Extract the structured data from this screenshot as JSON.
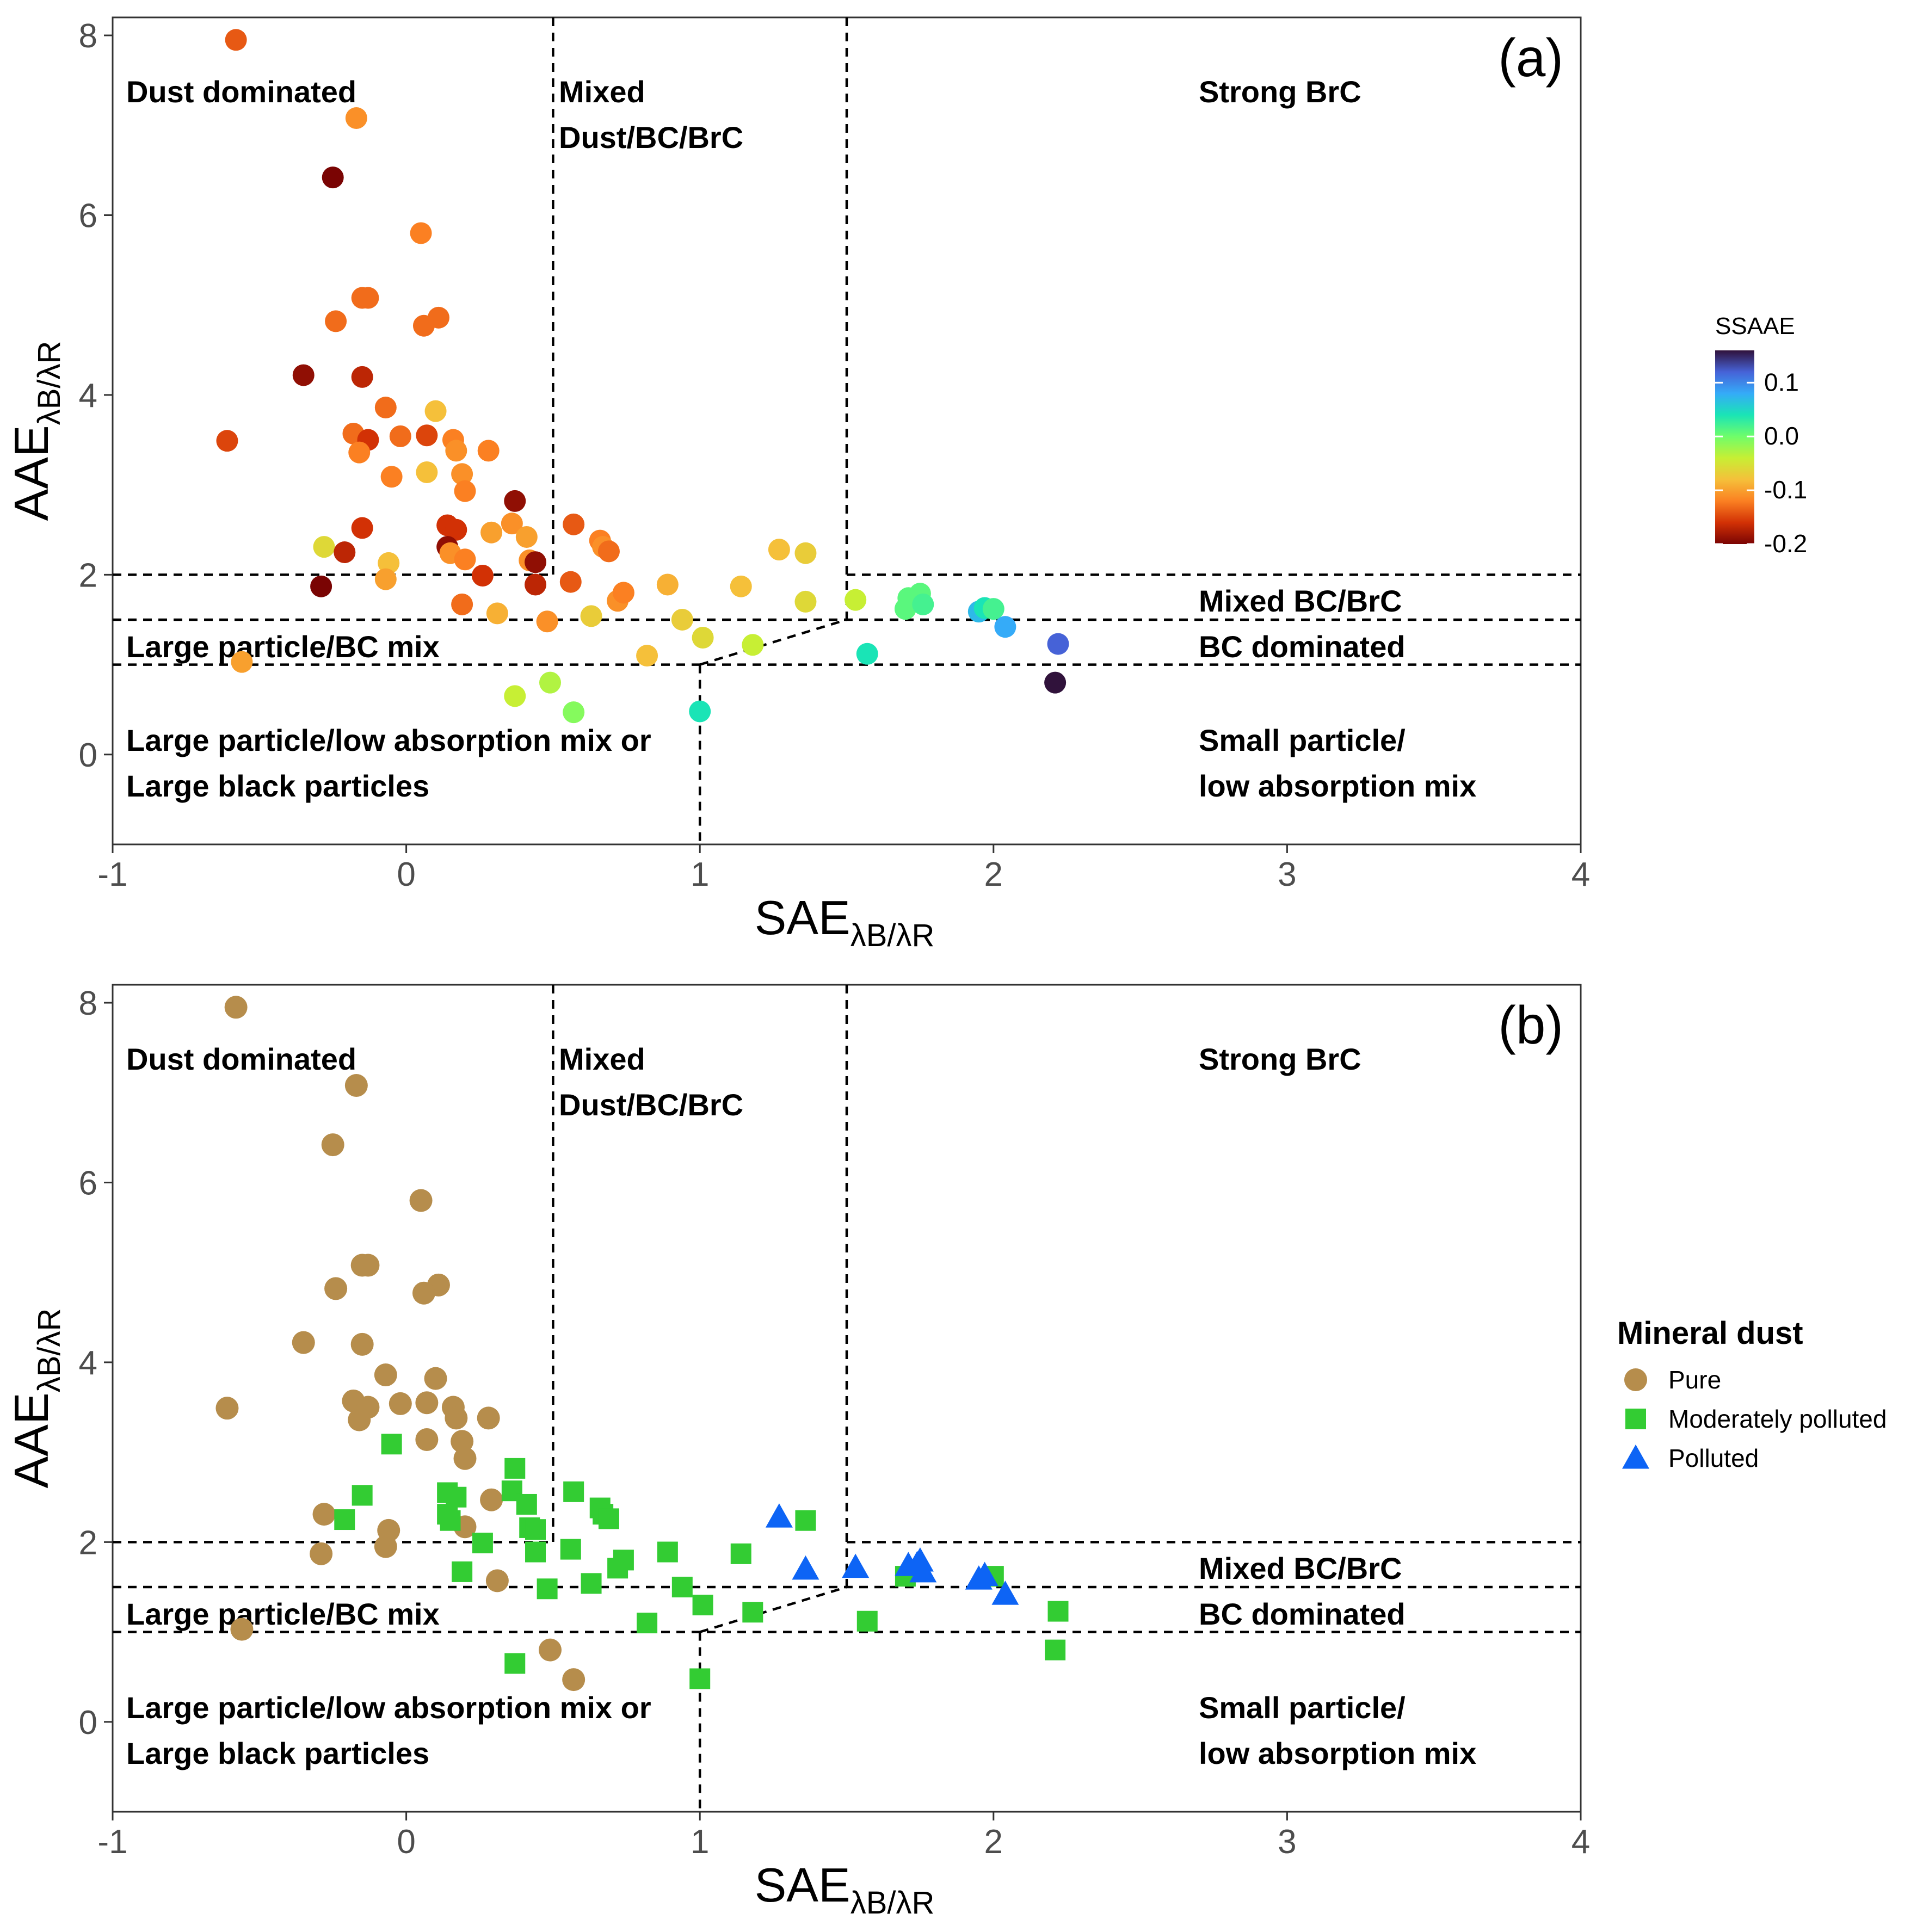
{
  "chart_data": [
    {
      "type": "scatter",
      "panel_label": "(a)",
      "xlabel": "SAE",
      "xlabel_subscript": "λB/λR",
      "ylabel": "AAE",
      "ylabel_subscript": "λB/λR",
      "xlim": [
        -1,
        4
      ],
      "ylim": [
        -1,
        8.2
      ],
      "xticks": [
        "-1",
        "0",
        "1",
        "2",
        "3",
        "4"
      ],
      "yticks": [
        "0",
        "2",
        "4",
        "6",
        "8"
      ],
      "grid": false,
      "color_scale": {
        "title": "SSAAE",
        "ticks": [
          "0.1",
          "0.0",
          "-0.1",
          "-0.2"
        ],
        "min": -0.2,
        "max": 0.16,
        "palette": [
          "#7a0403",
          "#d23105",
          "#fb8022",
          "#f5c03a",
          "#c7ef34",
          "#6ffd6a",
          "#1ae4b6",
          "#35abf8",
          "#4662d7",
          "#30123b"
        ]
      },
      "points": [
        {
          "x": -0.58,
          "y": 7.95,
          "c": -0.14
        },
        {
          "x": -0.17,
          "y": 7.08,
          "c": -0.11
        },
        {
          "x": -0.25,
          "y": 6.42,
          "c": -0.2
        },
        {
          "x": 0.05,
          "y": 5.8,
          "c": -0.12
        },
        {
          "x": -0.15,
          "y": 5.08,
          "c": -0.13
        },
        {
          "x": -0.13,
          "y": 5.08,
          "c": -0.13
        },
        {
          "x": -0.24,
          "y": 4.82,
          "c": -0.13
        },
        {
          "x": 0.11,
          "y": 4.86,
          "c": -0.13
        },
        {
          "x": 0.06,
          "y": 4.77,
          "c": -0.13
        },
        {
          "x": -0.35,
          "y": 4.22,
          "c": -0.19
        },
        {
          "x": -0.15,
          "y": 4.2,
          "c": -0.17
        },
        {
          "x": -0.07,
          "y": 3.86,
          "c": -0.13
        },
        {
          "x": 0.1,
          "y": 3.82,
          "c": -0.08
        },
        {
          "x": -0.61,
          "y": 3.49,
          "c": -0.15
        },
        {
          "x": -0.18,
          "y": 3.57,
          "c": -0.13
        },
        {
          "x": -0.13,
          "y": 3.5,
          "c": -0.16
        },
        {
          "x": -0.02,
          "y": 3.54,
          "c": -0.13
        },
        {
          "x": 0.07,
          "y": 3.55,
          "c": -0.15
        },
        {
          "x": 0.16,
          "y": 3.5,
          "c": -0.12
        },
        {
          "x": 0.17,
          "y": 3.38,
          "c": -0.11
        },
        {
          "x": 0.28,
          "y": 3.38,
          "c": -0.12
        },
        {
          "x": -0.16,
          "y": 3.36,
          "c": -0.12
        },
        {
          "x": -0.05,
          "y": 3.09,
          "c": -0.12
        },
        {
          "x": 0.07,
          "y": 3.14,
          "c": -0.08
        },
        {
          "x": 0.19,
          "y": 3.12,
          "c": -0.11
        },
        {
          "x": 0.2,
          "y": 2.93,
          "c": -0.12
        },
        {
          "x": 0.37,
          "y": 2.82,
          "c": -0.19
        },
        {
          "x": -0.15,
          "y": 2.52,
          "c": -0.16
        },
        {
          "x": 0.14,
          "y": 2.55,
          "c": -0.16
        },
        {
          "x": 0.17,
          "y": 2.5,
          "c": -0.16
        },
        {
          "x": 0.29,
          "y": 2.47,
          "c": -0.1
        },
        {
          "x": 0.36,
          "y": 2.57,
          "c": -0.11
        },
        {
          "x": 0.41,
          "y": 2.42,
          "c": -0.1
        },
        {
          "x": 0.57,
          "y": 2.56,
          "c": -0.14
        },
        {
          "x": 0.66,
          "y": 2.38,
          "c": -0.12
        },
        {
          "x": 0.67,
          "y": 2.31,
          "c": -0.11
        },
        {
          "x": 0.69,
          "y": 2.26,
          "c": -0.13
        },
        {
          "x": -0.28,
          "y": 2.31,
          "c": -0.06
        },
        {
          "x": -0.21,
          "y": 2.25,
          "c": -0.17
        },
        {
          "x": 0.14,
          "y": 2.31,
          "c": -0.19
        },
        {
          "x": 0.15,
          "y": 2.24,
          "c": -0.11
        },
        {
          "x": 0.2,
          "y": 2.17,
          "c": -0.12
        },
        {
          "x": 0.42,
          "y": 2.16,
          "c": -0.11
        },
        {
          "x": 0.44,
          "y": 2.14,
          "c": -0.19
        },
        {
          "x": 1.27,
          "y": 2.28,
          "c": -0.08
        },
        {
          "x": 1.36,
          "y": 2.24,
          "c": -0.07
        },
        {
          "x": -0.06,
          "y": 2.13,
          "c": -0.08
        },
        {
          "x": -0.07,
          "y": 1.95,
          "c": -0.1
        },
        {
          "x": 0.26,
          "y": 1.99,
          "c": -0.16
        },
        {
          "x": 0.44,
          "y": 1.89,
          "c": -0.17
        },
        {
          "x": 0.56,
          "y": 1.92,
          "c": -0.14
        },
        {
          "x": -0.29,
          "y": 1.87,
          "c": -0.21
        },
        {
          "x": 0.72,
          "y": 1.71,
          "c": -0.11
        },
        {
          "x": 0.74,
          "y": 1.8,
          "c": -0.12
        },
        {
          "x": 0.89,
          "y": 1.89,
          "c": -0.09
        },
        {
          "x": 1.14,
          "y": 1.87,
          "c": -0.08
        },
        {
          "x": 0.19,
          "y": 1.67,
          "c": -0.13
        },
        {
          "x": 0.31,
          "y": 1.57,
          "c": -0.09
        },
        {
          "x": 0.48,
          "y": 1.48,
          "c": -0.11
        },
        {
          "x": 0.63,
          "y": 1.54,
          "c": -0.07
        },
        {
          "x": 0.94,
          "y": 1.5,
          "c": -0.07
        },
        {
          "x": 1.01,
          "y": 1.3,
          "c": -0.06
        },
        {
          "x": 1.36,
          "y": 1.7,
          "c": -0.06
        },
        {
          "x": 1.53,
          "y": 1.72,
          "c": -0.04
        },
        {
          "x": 1.7,
          "y": 1.62,
          "c": 0.01
        },
        {
          "x": 1.71,
          "y": 1.74,
          "c": 0.01
        },
        {
          "x": 1.74,
          "y": 1.75,
          "c": 0.01
        },
        {
          "x": 1.75,
          "y": 1.79,
          "c": 0.01
        },
        {
          "x": 1.76,
          "y": 1.67,
          "c": 0.02
        },
        {
          "x": 1.95,
          "y": 1.59,
          "c": 0.07
        },
        {
          "x": 1.97,
          "y": 1.63,
          "c": 0.04
        },
        {
          "x": 2.0,
          "y": 1.62,
          "c": 0.02
        },
        {
          "x": 2.04,
          "y": 1.42,
          "c": 0.08
        },
        {
          "x": -0.56,
          "y": 1.03,
          "c": -0.1
        },
        {
          "x": 1.18,
          "y": 1.22,
          "c": -0.04
        },
        {
          "x": 0.82,
          "y": 1.1,
          "c": -0.08
        },
        {
          "x": 1.57,
          "y": 1.12,
          "c": 0.04
        },
        {
          "x": 2.22,
          "y": 1.23,
          "c": 0.12
        },
        {
          "x": 2.21,
          "y": 0.8,
          "c": 0.16
        },
        {
          "x": 0.37,
          "y": 0.65,
          "c": -0.04
        },
        {
          "x": 0.49,
          "y": 0.8,
          "c": -0.03
        },
        {
          "x": 0.57,
          "y": 0.47,
          "c": -0.01
        },
        {
          "x": 1.0,
          "y": 0.48,
          "c": 0.04
        }
      ]
    },
    {
      "type": "scatter",
      "panel_label": "(b)",
      "xlabel": "SAE",
      "xlabel_subscript": "λB/λR",
      "ylabel": "AAE",
      "ylabel_subscript": "λB/λR",
      "xlim": [
        -1,
        4
      ],
      "ylim": [
        -1,
        8.2
      ],
      "xticks": [
        "-1",
        "0",
        "1",
        "2",
        "3",
        "4"
      ],
      "yticks": [
        "0",
        "2",
        "4",
        "6",
        "8"
      ],
      "grid": false,
      "legend": {
        "title": "Mineral dust",
        "entries": [
          {
            "label": "Pure",
            "shape": "circle",
            "color": "#b68d4c"
          },
          {
            "label": "Moderately polluted",
            "shape": "square",
            "color": "#33cc33"
          },
          {
            "label": "Polluted",
            "shape": "triangle",
            "color": "#0d64f5"
          }
        ]
      },
      "series": [
        {
          "name": "Pure",
          "shape": "circle",
          "color": "#b68d4c",
          "points": [
            [
              -0.58,
              7.95
            ],
            [
              -0.17,
              7.08
            ],
            [
              -0.25,
              6.42
            ],
            [
              0.05,
              5.8
            ],
            [
              -0.15,
              5.08
            ],
            [
              -0.13,
              5.08
            ],
            [
              -0.24,
              4.82
            ],
            [
              0.11,
              4.86
            ],
            [
              0.06,
              4.77
            ],
            [
              -0.35,
              4.22
            ],
            [
              -0.15,
              4.2
            ],
            [
              -0.07,
              3.86
            ],
            [
              0.1,
              3.82
            ],
            [
              -0.61,
              3.49
            ],
            [
              -0.18,
              3.57
            ],
            [
              -0.13,
              3.5
            ],
            [
              -0.02,
              3.54
            ],
            [
              0.07,
              3.55
            ],
            [
              0.16,
              3.5
            ],
            [
              0.17,
              3.38
            ],
            [
              0.28,
              3.38
            ],
            [
              -0.16,
              3.36
            ],
            [
              0.07,
              3.14
            ],
            [
              0.19,
              3.12
            ],
            [
              0.2,
              2.93
            ],
            [
              0.29,
              2.47
            ],
            [
              -0.28,
              2.31
            ],
            [
              0.2,
              2.17
            ],
            [
              -0.06,
              2.13
            ],
            [
              -0.07,
              1.95
            ],
            [
              -0.29,
              1.87
            ],
            [
              0.31,
              1.57
            ],
            [
              -0.56,
              1.03
            ],
            [
              0.49,
              0.8
            ],
            [
              0.57,
              0.47
            ]
          ]
        },
        {
          "name": "Moderately polluted",
          "shape": "square",
          "color": "#33cc33",
          "points": [
            [
              -0.05,
              3.09
            ],
            [
              0.37,
              2.82
            ],
            [
              -0.15,
              2.52
            ],
            [
              0.14,
              2.55
            ],
            [
              0.17,
              2.5
            ],
            [
              0.36,
              2.57
            ],
            [
              0.41,
              2.42
            ],
            [
              0.57,
              2.56
            ],
            [
              0.66,
              2.38
            ],
            [
              0.67,
              2.31
            ],
            [
              0.69,
              2.26
            ],
            [
              -0.21,
              2.25
            ],
            [
              0.14,
              2.31
            ],
            [
              0.15,
              2.24
            ],
            [
              0.42,
              2.16
            ],
            [
              0.44,
              2.14
            ],
            [
              1.36,
              2.24
            ],
            [
              0.26,
              1.99
            ],
            [
              0.44,
              1.89
            ],
            [
              0.56,
              1.92
            ],
            [
              0.72,
              1.71
            ],
            [
              0.74,
              1.8
            ],
            [
              0.89,
              1.89
            ],
            [
              1.14,
              1.87
            ],
            [
              0.19,
              1.67
            ],
            [
              0.48,
              1.48
            ],
            [
              0.63,
              1.54
            ],
            [
              0.94,
              1.5
            ],
            [
              1.01,
              1.3
            ],
            [
              1.7,
              1.62
            ],
            [
              2.0,
              1.62
            ],
            [
              1.18,
              1.22
            ],
            [
              0.82,
              1.1
            ],
            [
              1.57,
              1.12
            ],
            [
              2.22,
              1.23
            ],
            [
              2.21,
              0.8
            ],
            [
              0.37,
              0.65
            ],
            [
              1.0,
              0.48
            ]
          ]
        },
        {
          "name": "Polluted",
          "shape": "triangle",
          "color": "#0d64f5",
          "points": [
            [
              1.27,
              2.28
            ],
            [
              1.36,
              1.7
            ],
            [
              1.53,
              1.72
            ],
            [
              1.71,
              1.74
            ],
            [
              1.74,
              1.75
            ],
            [
              1.75,
              1.79
            ],
            [
              1.76,
              1.67
            ],
            [
              1.95,
              1.59
            ],
            [
              1.97,
              1.63
            ],
            [
              2.04,
              1.42
            ]
          ]
        }
      ]
    }
  ],
  "regions": {
    "dust_dominated": "Dust dominated",
    "mixed_line1": "Mixed",
    "mixed_line2": "Dust/BC/BrC",
    "strong_brc": "Strong BrC",
    "mixed_bc_brc": "Mixed BC/BrC",
    "bc_dominated": "BC dominated",
    "large_bc_mix": "Large particle/BC mix",
    "large_low_line1": "Large particle/low absorption mix or",
    "large_low_line2": "Large black particles",
    "small_low_line1": "Small particle/",
    "small_low_line2": "low absorption mix"
  }
}
